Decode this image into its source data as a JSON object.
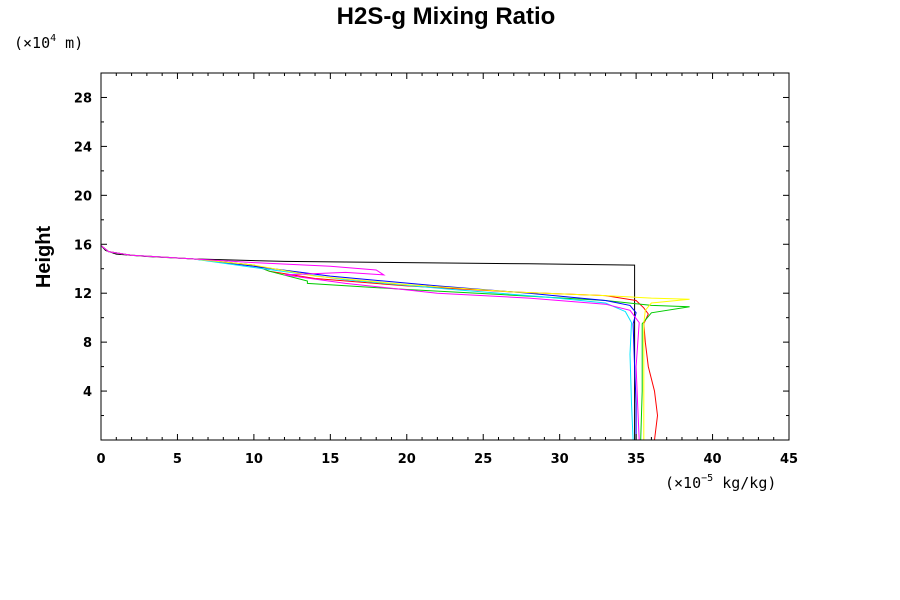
{
  "chart_data": {
    "type": "line",
    "title": "H2S-g Mixing Ratio",
    "ylabel": "Height",
    "xlabel": "",
    "y_unit": {
      "prefix": "(×10",
      "exp": "4",
      "suffix": " m)"
    },
    "x_unit": {
      "prefix": "(×10",
      "exp": "−5",
      "suffix": " kg/kg)"
    },
    "xlim": [
      0,
      45
    ],
    "ylim": [
      0,
      30
    ],
    "x_ticks": [
      0,
      5,
      10,
      15,
      20,
      25,
      30,
      35,
      40,
      45
    ],
    "y_ticks": [
      4,
      8,
      12,
      16,
      20,
      24,
      28
    ],
    "grid": false,
    "legend": "none",
    "series": [
      {
        "color": "#000000",
        "points": [
          [
            0,
            15.9
          ],
          [
            0.3,
            15.5
          ],
          [
            1,
            15.2
          ],
          [
            3,
            15.0
          ],
          [
            6,
            14.8
          ],
          [
            12,
            14.6
          ],
          [
            20,
            14.5
          ],
          [
            28,
            14.4
          ],
          [
            34.9,
            14.3
          ],
          [
            34.9,
            0
          ]
        ]
      },
      {
        "color": "#ff0000",
        "points": [
          [
            0,
            15.9
          ],
          [
            0.5,
            15.4
          ],
          [
            2,
            15.1
          ],
          [
            6,
            14.8
          ],
          [
            10,
            14.3
          ],
          [
            11,
            13.8
          ],
          [
            14,
            13.2
          ],
          [
            20,
            12.6
          ],
          [
            27,
            12.1
          ],
          [
            33,
            11.8
          ],
          [
            35,
            11.4
          ],
          [
            35.5,
            10.8
          ],
          [
            35.8,
            10.3
          ],
          [
            35.5,
            9.5
          ],
          [
            35.6,
            8
          ],
          [
            35.8,
            6
          ],
          [
            36.2,
            4
          ],
          [
            36.4,
            2
          ],
          [
            36.2,
            0
          ]
        ]
      },
      {
        "color": "#00cc00",
        "points": [
          [
            0,
            15.9
          ],
          [
            0.5,
            15.4
          ],
          [
            2,
            15.1
          ],
          [
            6,
            14.8
          ],
          [
            10,
            14.3
          ],
          [
            11,
            13.8
          ],
          [
            13.5,
            13.0
          ],
          [
            13.5,
            12.8
          ],
          [
            20,
            12.3
          ],
          [
            26,
            11.9
          ],
          [
            33,
            11.4
          ],
          [
            36,
            11.0
          ],
          [
            38.5,
            10.9
          ],
          [
            36,
            10.4
          ],
          [
            35.4,
            9.5
          ],
          [
            35.4,
            4
          ],
          [
            35.3,
            0
          ]
        ]
      },
      {
        "color": "#0000ff",
        "points": [
          [
            0,
            15.9
          ],
          [
            0.5,
            15.4
          ],
          [
            2,
            15.1
          ],
          [
            6,
            14.8
          ],
          [
            10,
            14.2
          ],
          [
            15,
            13.4
          ],
          [
            22,
            12.6
          ],
          [
            28,
            12.0
          ],
          [
            33,
            11.4
          ],
          [
            34.6,
            11.0
          ],
          [
            35.0,
            10.4
          ],
          [
            34.8,
            9.5
          ],
          [
            34.9,
            6
          ],
          [
            35.0,
            3
          ],
          [
            35.0,
            0
          ]
        ]
      },
      {
        "color": "#00e5ff",
        "points": [
          [
            0,
            15.9
          ],
          [
            0.5,
            15.4
          ],
          [
            2,
            15.1
          ],
          [
            6,
            14.8
          ],
          [
            10,
            14.1
          ],
          [
            16,
            13.1
          ],
          [
            23,
            12.3
          ],
          [
            29,
            11.7
          ],
          [
            33,
            11.2
          ],
          [
            34.3,
            10.5
          ],
          [
            34.7,
            9.6
          ],
          [
            34.6,
            7
          ],
          [
            34.7,
            3
          ],
          [
            34.8,
            0
          ]
        ]
      },
      {
        "color": "#ffff00",
        "points": [
          [
            0,
            15.9
          ],
          [
            0.5,
            15.4
          ],
          [
            2,
            15.1
          ],
          [
            6,
            14.8
          ],
          [
            10,
            14.3
          ],
          [
            14,
            13.4
          ],
          [
            20,
            12.7
          ],
          [
            27,
            12.1
          ],
          [
            33,
            11.8
          ],
          [
            36,
            11.6
          ],
          [
            38.5,
            11.5
          ],
          [
            36,
            11.2
          ],
          [
            35.6,
            10.6
          ],
          [
            35.5,
            9.5
          ],
          [
            35.5,
            5
          ],
          [
            35.5,
            0
          ]
        ]
      },
      {
        "color": "#ff00ff",
        "points": [
          [
            0,
            30
          ],
          [
            0,
            15.9
          ],
          [
            0.5,
            15.4
          ],
          [
            2,
            15.1
          ],
          [
            6,
            14.8
          ],
          [
            10,
            14.5
          ],
          [
            15,
            14.2
          ],
          [
            18,
            13.9
          ],
          [
            18.5,
            13.5
          ],
          [
            16,
            13.7
          ],
          [
            12,
            13.5
          ],
          [
            16,
            12.8
          ],
          [
            22,
            12.0
          ],
          [
            28,
            11.6
          ],
          [
            33,
            11.1
          ],
          [
            34.6,
            10.6
          ],
          [
            35.2,
            9.6
          ],
          [
            35.0,
            6
          ],
          [
            35.1,
            3
          ],
          [
            35.2,
            0
          ]
        ]
      }
    ]
  }
}
